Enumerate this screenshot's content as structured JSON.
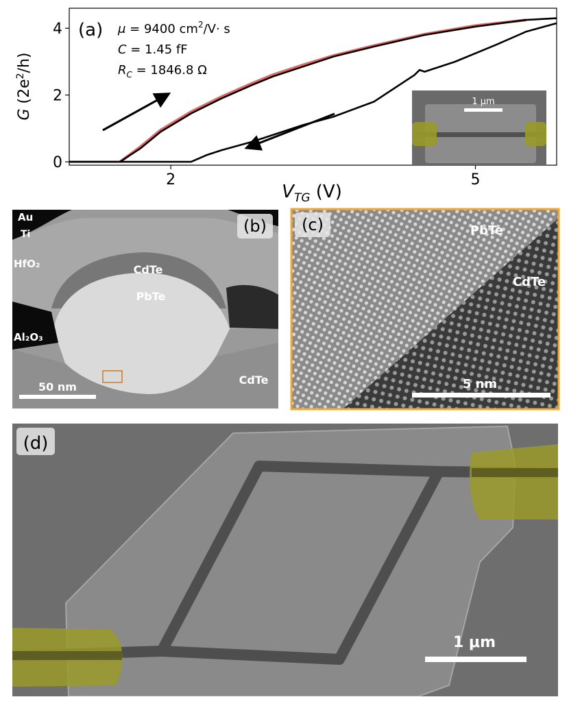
{
  "panel_a": {
    "label": "(a)",
    "params": {
      "mu_sym": "μ",
      "mu_eq": " = 9400 cm",
      "mu_exp": "2",
      "mu_unit": "/V· s",
      "c_sym": "C",
      "c_eq": " = 1.45 fF",
      "r_sym": "R",
      "r_sub": "C",
      "r_eq": " = 1846.8 Ω"
    },
    "ylabel": {
      "g": "G",
      "open": " (2e",
      "exp": "2",
      "close": "/h)"
    },
    "xlabel": {
      "v": "V",
      "sub": "TG",
      "unit": " (V)"
    },
    "inset_scale": "1 μm"
  },
  "panel_b": {
    "label": "(b)",
    "layers": {
      "au": "Au",
      "ti": "Ti",
      "hfo2": "HfO₂",
      "al2o3": "Al₂O₃",
      "cdte_top": "CdTe",
      "pbte": "PbTe",
      "cdte_sub": "CdTe"
    },
    "scale": "50  nm"
  },
  "panel_c": {
    "label": "(c)",
    "pbte": "PbTe",
    "cdte": "CdTe",
    "scale": "5  nm"
  },
  "panel_d": {
    "label": "(d)",
    "scale": "1 μm"
  },
  "colors": {
    "curve": "#000000",
    "fit": "#e06b6b",
    "contact": "#9a9a2a",
    "border_c": "#f0a830",
    "sem_bg": "#6e6e6e"
  },
  "chart_data": {
    "type": "line",
    "title": "",
    "xlabel": "V_TG (V)",
    "ylabel": "G (2e^2/h)",
    "xlim": [
      1.0,
      5.8
    ],
    "ylim": [
      -0.1,
      4.6
    ],
    "xticks": [
      2,
      5
    ],
    "yticks": [
      0,
      2,
      4
    ],
    "series": [
      {
        "x": [
          1.0,
          1.3,
          1.5,
          1.7,
          1.9,
          2.2,
          2.5,
          2.8,
          3.0,
          3.3,
          3.6,
          4.0,
          4.5,
          5.0,
          5.5,
          5.8
        ],
        "values": [
          0.0,
          0.0,
          0.0,
          0.4,
          0.9,
          1.45,
          1.9,
          2.3,
          2.55,
          2.85,
          3.15,
          3.45,
          3.8,
          4.05,
          4.25,
          4.3
        ]
      },
      {
        "x": [
          1.0,
          2.0,
          2.2,
          2.35,
          2.5,
          2.8,
          3.0,
          3.3,
          3.6,
          4.0,
          4.4,
          4.45,
          4.5,
          4.8,
          5.2,
          5.5,
          5.8
        ],
        "values": [
          0.0,
          0.0,
          0.0,
          0.2,
          0.35,
          0.6,
          0.8,
          1.1,
          1.35,
          1.8,
          2.6,
          2.75,
          2.7,
          3.0,
          3.5,
          3.9,
          4.15
        ]
      }
    ],
    "fit_series": {
      "x": [
        1.5,
        1.7,
        1.9,
        2.2,
        2.5,
        2.8,
        3.0,
        3.3,
        3.6,
        4.0,
        4.5,
        5.0,
        5.5
      ],
      "values": [
        0.0,
        0.45,
        0.95,
        1.5,
        1.95,
        2.35,
        2.6,
        2.9,
        3.18,
        3.48,
        3.82,
        4.08,
        4.25
      ]
    }
  }
}
